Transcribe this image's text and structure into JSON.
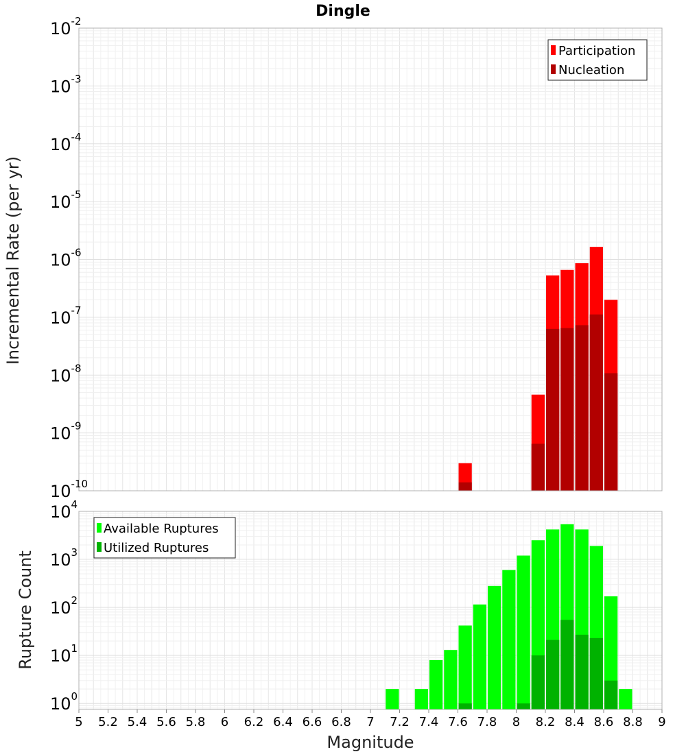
{
  "chart_data": [
    {
      "panel": "top",
      "type": "bar",
      "scale": "log",
      "title": "Dingle",
      "ylabel": "Incremental Rate (per yr)",
      "xlabel": "",
      "xlim": [
        5,
        9
      ],
      "ylim_exp": [
        -10,
        -2
      ],
      "bin_width": 0.1,
      "y_tick_exponents": [
        "-2",
        "-3",
        "-4",
        "-5",
        "-6",
        "-7",
        "-8",
        "-9",
        "-10"
      ],
      "legend": [
        "Participation",
        "Nucleation"
      ],
      "legend_position": "top-right",
      "series": [
        {
          "name": "Participation",
          "color": "#ff0000",
          "points": [
            {
              "x": 7.65,
              "y": 3e-10
            },
            {
              "x": 8.15,
              "y": 4.6e-09
            },
            {
              "x": 8.25,
              "y": 5.3e-07
            },
            {
              "x": 8.35,
              "y": 6.6e-07
            },
            {
              "x": 8.45,
              "y": 8.6e-07
            },
            {
              "x": 8.55,
              "y": 1.65e-06
            },
            {
              "x": 8.65,
              "y": 2e-07
            }
          ]
        },
        {
          "name": "Nucleation",
          "color": "#b20000",
          "points": [
            {
              "x": 7.65,
              "y": 1.4e-10
            },
            {
              "x": 8.15,
              "y": 6.5e-10
            },
            {
              "x": 8.25,
              "y": 6.3e-08
            },
            {
              "x": 8.35,
              "y": 6.5e-08
            },
            {
              "x": 8.45,
              "y": 7.3e-08
            },
            {
              "x": 8.55,
              "y": 1.12e-07
            },
            {
              "x": 8.65,
              "y": 1.08e-08
            }
          ]
        }
      ]
    },
    {
      "panel": "bottom",
      "type": "bar",
      "scale": "log",
      "title": "",
      "ylabel": "Rupture Count",
      "xlabel": "Magnitude",
      "xlim": [
        5,
        9
      ],
      "ylim": [
        0.75,
        10000
      ],
      "bin_width": 0.1,
      "x_ticks": [
        "5",
        "5.2",
        "5.4",
        "5.6",
        "5.8",
        "6",
        "6.2",
        "6.4",
        "6.6",
        "6.8",
        "7",
        "7.2",
        "7.4",
        "7.6",
        "7.8",
        "8",
        "8.2",
        "8.4",
        "8.6",
        "8.8",
        "9"
      ],
      "y_tick_exponents": [
        "4",
        "3",
        "2",
        "1",
        "0"
      ],
      "legend": [
        "Available Ruptures",
        "Utilized Ruptures"
      ],
      "legend_position": "top-left",
      "series": [
        {
          "name": "Available Ruptures",
          "color": "#00ff00",
          "points": [
            {
              "x": 7.15,
              "y": 2
            },
            {
              "x": 7.35,
              "y": 2
            },
            {
              "x": 7.45,
              "y": 8
            },
            {
              "x": 7.55,
              "y": 13
            },
            {
              "x": 7.65,
              "y": 42
            },
            {
              "x": 7.75,
              "y": 115
            },
            {
              "x": 7.85,
              "y": 280
            },
            {
              "x": 7.95,
              "y": 600
            },
            {
              "x": 8.05,
              "y": 1200
            },
            {
              "x": 8.15,
              "y": 2500
            },
            {
              "x": 8.25,
              "y": 4200
            },
            {
              "x": 8.35,
              "y": 5400
            },
            {
              "x": 8.45,
              "y": 4200
            },
            {
              "x": 8.55,
              "y": 1900
            },
            {
              "x": 8.65,
              "y": 170
            },
            {
              "x": 8.75,
              "y": 2
            }
          ]
        },
        {
          "name": "Utilized Ruptures",
          "color": "#00b200",
          "points": [
            {
              "x": 7.65,
              "y": 1
            },
            {
              "x": 8.05,
              "y": 1
            },
            {
              "x": 8.15,
              "y": 10
            },
            {
              "x": 8.25,
              "y": 21
            },
            {
              "x": 8.35,
              "y": 55
            },
            {
              "x": 8.45,
              "y": 27
            },
            {
              "x": 8.55,
              "y": 23
            },
            {
              "x": 8.65,
              "y": 3
            }
          ]
        }
      ]
    }
  ]
}
